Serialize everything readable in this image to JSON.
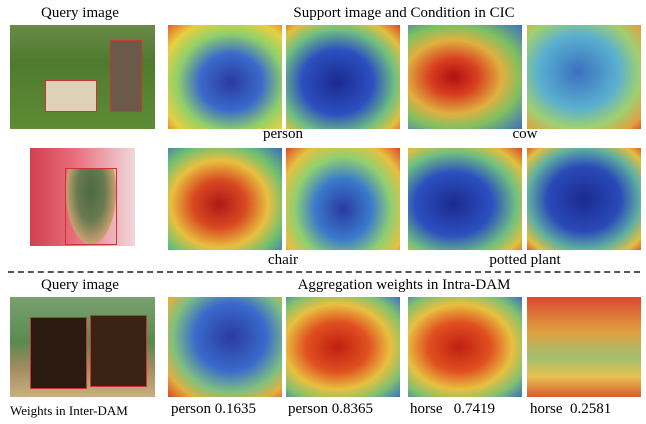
{
  "header": {
    "query_top": "Query image",
    "support_title": "Support image and Condition in CIC",
    "query_bottom": "Query image",
    "aggregation_title": "Aggregation weights in Intra-DAM",
    "inter_label": "Weights in Inter-DAM"
  },
  "row1_labels": [
    "person",
    "cow"
  ],
  "row2_labels": [
    "chair",
    "potted plant"
  ],
  "weights": [
    {
      "class": "person",
      "weight": 0.1635
    },
    {
      "class": "person",
      "weight": 0.8365
    },
    {
      "class": "horse",
      "weight": 0.7419
    },
    {
      "class": "horse",
      "weight": 0.2581
    }
  ]
}
